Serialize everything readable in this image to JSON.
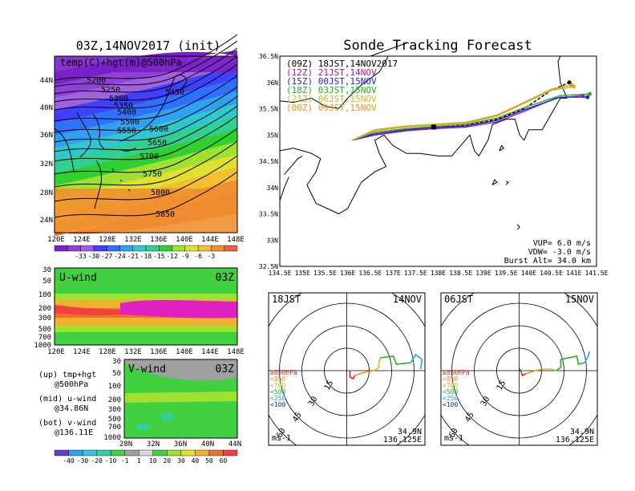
{
  "left_title": "03Z,14NOV2017 (init)",
  "map_label": "temp(C)+hgt(m)@500hPa",
  "map_lat_ticks": [
    "44N",
    "40N",
    "36N",
    "32N",
    "28N",
    "24N"
  ],
  "map_lon_ticks": [
    "120E",
    "124E",
    "128E",
    "132E",
    "136E",
    "140E",
    "144E",
    "148E"
  ],
  "contour_labels": [
    "5200",
    "5250",
    "5300",
    "5350",
    "5400",
    "5450",
    "5500",
    "5550",
    "5600",
    "5650",
    "5700",
    "5750",
    "5800",
    "5850"
  ],
  "temp_colorbar": {
    "labels": [
      "-33",
      "-30",
      "-27",
      "-24",
      "-21",
      "-18",
      "-15",
      "-12",
      "-9",
      "-6",
      "-3"
    ],
    "colors": [
      "#7a20c8",
      "#9040d8",
      "#a060e0",
      "#4040ff",
      "#3070ff",
      "#30a0f0",
      "#30c8d0",
      "#30d090",
      "#30d030",
      "#a0e030",
      "#e0e030",
      "#f0c030",
      "#f09030",
      "#f06040"
    ]
  },
  "uwind": {
    "label": "U-wind",
    "time": "03Z",
    "pressure_ticks": [
      "30",
      "50",
      "100",
      "200",
      "300",
      "500",
      "700",
      "1000"
    ]
  },
  "vwind": {
    "label": "V-wind",
    "time": "03Z",
    "pressure_ticks": [
      "30",
      "50",
      "100",
      "200",
      "300",
      "500",
      "700",
      "1000"
    ],
    "lat_ticks": [
      "28N",
      "32N",
      "36N",
      "40N",
      "44N"
    ]
  },
  "notes": {
    "up": "(up) tmp+hgt",
    "up2": "@500hPa",
    "mid": "(mid) u-wind",
    "mid2": "@34.86N",
    "bot": "(bot) v-wind",
    "bot2": "@136.11E"
  },
  "wind_colorbar": {
    "labels": [
      "-40",
      "-30",
      "-20",
      "-10",
      "-1",
      "1",
      "10",
      "20",
      "30",
      "40",
      "50",
      "60"
    ],
    "colors": [
      "#6040c8",
      "#30a0f0",
      "#30c8e0",
      "#30d0a0",
      "#40d040",
      "#a0a0a0",
      "#d8d8d8",
      "#40d040",
      "#a0e030",
      "#e0e030",
      "#f0b030",
      "#f07030",
      "#f04040"
    ]
  },
  "right_title": "Sonde Tracking Forecast",
  "tracking_legend": [
    {
      "label": "(09Z)  18JST,14NOV2017",
      "color": "#000000"
    },
    {
      "label": "(12Z)  21JST,14NOV",
      "color": "#b010b0"
    },
    {
      "label": "(15Z)  00JST,15NOV",
      "color": "#2020e0"
    },
    {
      "label": "(18Z)  03JST,15NOV",
      "color": "#20b020"
    },
    {
      "label": "(21Z)  06JST,15NOV",
      "color": "#c0c020"
    },
    {
      "label": "(00Z)  09JST,15NOV",
      "color": "#f09020"
    }
  ],
  "track_lat_ticks": [
    "36.5N",
    "36N",
    "35.5N",
    "35N",
    "34.5N",
    "34N",
    "33.5N",
    "33N",
    "32.5N"
  ],
  "track_lon_ticks": [
    "134.5E",
    "135E",
    "135.5E",
    "136E",
    "136.5E",
    "137E",
    "137.5E",
    "138E",
    "138.5E",
    "139E",
    "139.5E",
    "140E",
    "140.5E",
    "141E",
    "141.5E"
  ],
  "params": {
    "vup": "VUP=  6.0 m/s",
    "vdw": "VDW= -3.0 m/s",
    "burst": "Burst Alt= 34.0 km"
  },
  "hodo_left": {
    "time": "18JST",
    "date": "14NOV",
    "rings": [
      "15",
      "30",
      "45",
      "60"
    ],
    "pos1": "34.9N",
    "pos2": "136.125E",
    "unit": "ms-1"
  },
  "hodo_right": {
    "time": "06JST",
    "date": "15NOV",
    "rings": [
      "15",
      "30",
      "45",
      "60"
    ],
    "pos1": "34.9N",
    "pos2": "136.125E",
    "unit": "ms-1"
  },
  "hodo_legend": [
    {
      "label": "≥850hPa",
      "color": "#e02020"
    },
    {
      "label": "<850",
      "color": "#f09020"
    },
    {
      "label": "<700",
      "color": "#c0c020"
    },
    {
      "label": "<500",
      "color": "#20b020"
    },
    {
      "label": "<250",
      "color": "#20a0e0"
    },
    {
      "label": "<100",
      "color": "#2020e0"
    }
  ],
  "chart_data": {
    "type": "line",
    "title": "Sonde Tracking Forecast",
    "xlim": [
      134.5,
      141.5
    ],
    "ylim": [
      32.5,
      36.5
    ],
    "launch": {
      "lon": 136.125,
      "lat": 34.9
    },
    "series": [
      {
        "name": "(09Z) 18JST,14NOV2017",
        "points": [
          [
            136.1,
            34.9
          ],
          [
            136.6,
            35.05
          ],
          [
            137.3,
            35.12
          ],
          [
            137.9,
            35.15
          ],
          [
            138.6,
            35.18
          ],
          [
            139.3,
            35.3
          ],
          [
            139.9,
            35.5
          ],
          [
            140.5,
            35.85
          ],
          [
            140.9,
            36.0
          ]
        ]
      },
      {
        "name": "(12Z) 21JST,14NOV",
        "points": [
          [
            136.1,
            34.9
          ],
          [
            136.6,
            35.0
          ],
          [
            137.3,
            35.08
          ],
          [
            137.9,
            35.12
          ],
          [
            138.6,
            35.15
          ],
          [
            139.3,
            35.25
          ],
          [
            139.9,
            35.45
          ],
          [
            140.6,
            35.7
          ],
          [
            141.2,
            35.75
          ]
        ]
      },
      {
        "name": "(15Z) 00JST,15NOV",
        "points": [
          [
            136.1,
            34.9
          ],
          [
            136.6,
            35.02
          ],
          [
            137.3,
            35.1
          ],
          [
            137.9,
            35.14
          ],
          [
            138.6,
            35.17
          ],
          [
            139.3,
            35.28
          ],
          [
            139.9,
            35.48
          ],
          [
            140.7,
            35.72
          ],
          [
            141.3,
            35.72
          ]
        ]
      },
      {
        "name": "(18Z) 03JST,15NOV",
        "points": [
          [
            136.1,
            34.9
          ],
          [
            136.6,
            35.05
          ],
          [
            137.3,
            35.12
          ],
          [
            137.9,
            35.16
          ],
          [
            138.6,
            35.2
          ],
          [
            139.3,
            35.32
          ],
          [
            139.9,
            35.52
          ],
          [
            140.7,
            35.75
          ],
          [
            141.35,
            35.78
          ]
        ]
      },
      {
        "name": "(21Z) 06JST,15NOV",
        "points": [
          [
            136.1,
            34.9
          ],
          [
            136.6,
            35.08
          ],
          [
            137.3,
            35.15
          ],
          [
            137.9,
            35.18
          ],
          [
            138.6,
            35.22
          ],
          [
            139.3,
            35.36
          ],
          [
            139.9,
            35.6
          ],
          [
            140.5,
            35.85
          ],
          [
            141.0,
            35.92
          ]
        ]
      },
      {
        "name": "(00Z) 09JST,15NOV",
        "points": [
          [
            136.1,
            34.9
          ],
          [
            136.6,
            35.1
          ],
          [
            137.3,
            35.17
          ],
          [
            137.9,
            35.2
          ],
          [
            138.6,
            35.24
          ],
          [
            139.3,
            35.38
          ],
          [
            139.9,
            35.62
          ],
          [
            140.5,
            35.87
          ],
          [
            140.95,
            35.95
          ]
        ]
      }
    ]
  }
}
